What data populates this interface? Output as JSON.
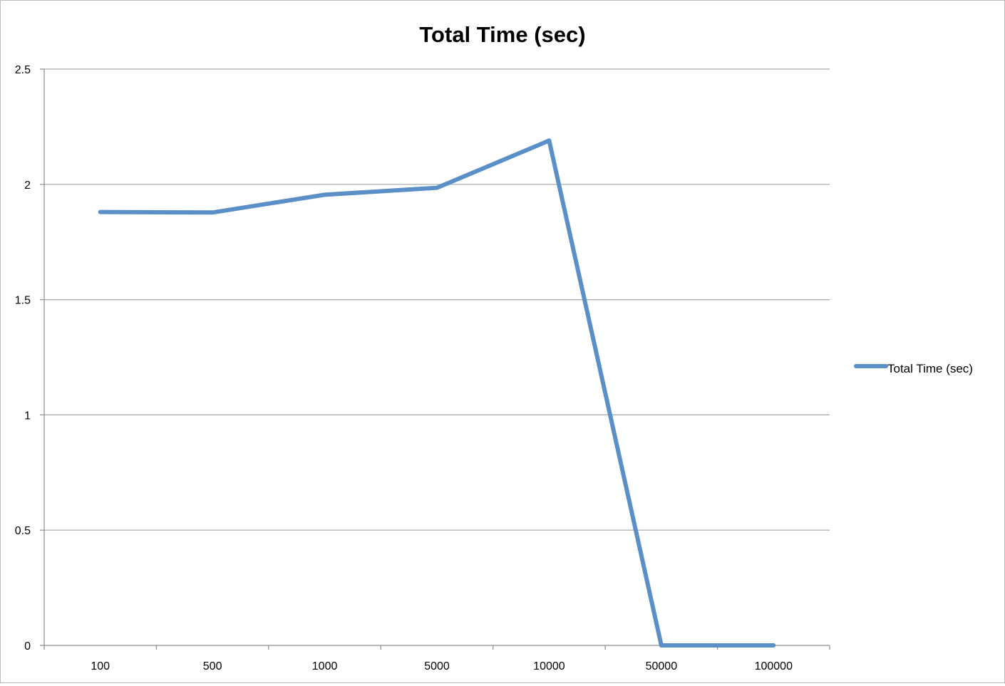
{
  "chart_data": {
    "type": "line",
    "title": "Total Time (sec)",
    "xlabel": "",
    "ylabel": "",
    "categories": [
      "100",
      "500",
      "1000",
      "5000",
      "10000",
      "50000",
      "100000"
    ],
    "series": [
      {
        "name": "Total Time (sec)",
        "values": [
          1.88,
          1.878,
          1.955,
          1.985,
          2.19,
          0,
          0
        ],
        "color": "#5b8fc7"
      }
    ],
    "ylim": [
      0,
      2.5
    ],
    "yticks": [
      "0",
      "0.5",
      "1",
      "1.5",
      "2",
      "2.5"
    ],
    "yticks_values": [
      0,
      0.5,
      1,
      1.5,
      2,
      2.5
    ],
    "grid": true,
    "legend": "right"
  }
}
